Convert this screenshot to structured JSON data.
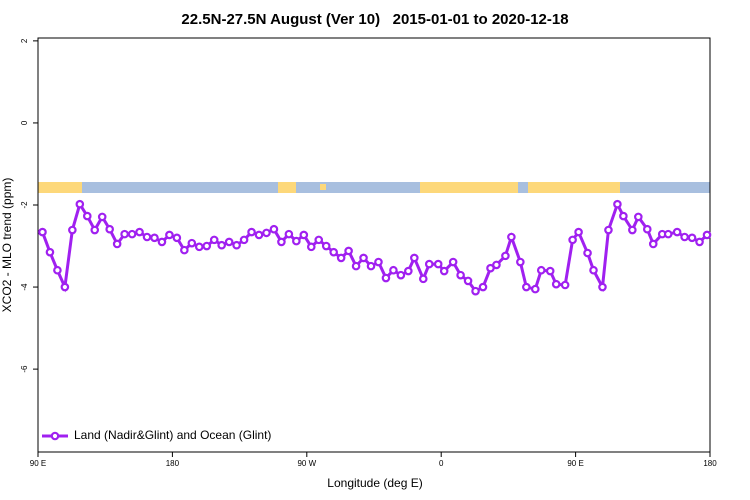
{
  "chart_data": {
    "type": "line",
    "title": "22.5N-27.5N August (Ver 10)   2015-01-01 to 2020-12-18",
    "x_label": "Longitude (deg E)",
    "y_label": "XCO2 - MLO trend (ppm)",
    "xlim": [
      90,
      540
    ],
    "xticks": [
      {
        "value": 90,
        "label": "90 E"
      },
      180,
      {
        "value": 270,
        "label": "90 W"
      },
      {
        "value": 360,
        "label": "0"
      },
      {
        "value": 450,
        "label": "90 E"
      },
      180
    ],
    "ylim": [
      -8.02,
      2.07
    ],
    "yticks": [
      -6,
      -4,
      -2,
      0,
      2
    ],
    "legend_position": "bottom-left",
    "x": [
      93,
      98,
      103,
      108,
      113,
      118,
      123,
      128,
      133,
      138,
      143,
      148,
      153,
      158,
      163,
      168,
      173,
      178,
      183,
      188,
      193,
      198,
      203,
      208,
      213,
      218,
      223,
      228,
      233,
      238,
      243,
      248,
      253,
      258,
      263,
      268,
      273,
      278,
      283,
      288,
      293,
      298,
      303,
      308,
      313,
      318,
      323,
      328,
      333,
      338,
      342,
      348,
      352,
      358,
      362,
      368,
      373,
      378,
      383,
      388,
      393,
      397,
      403,
      407,
      413,
      417,
      423,
      427,
      433,
      437,
      443,
      448,
      452,
      458,
      462,
      468,
      472,
      478,
      482,
      488,
      492,
      498,
      502,
      508,
      512,
      518,
      523,
      528,
      533,
      538
    ],
    "series": [
      {
        "name": "Land (Nadir&Glint) and Ocean (Glint)",
        "color": "#a020f0",
        "values": [
          -2.66,
          -3.15,
          -3.59,
          -4.0,
          -2.61,
          -1.98,
          -2.27,
          -2.61,
          -2.29,
          -2.59,
          -2.95,
          -2.71,
          -2.71,
          -2.66,
          -2.78,
          -2.8,
          -2.9,
          -2.73,
          -2.8,
          -3.1,
          -2.93,
          -3.02,
          -3.0,
          -2.85,
          -2.98,
          -2.9,
          -2.98,
          -2.85,
          -2.66,
          -2.73,
          -2.68,
          -2.59,
          -2.9,
          -2.71,
          -2.88,
          -2.73,
          -3.02,
          -2.85,
          -3.0,
          -3.15,
          -3.29,
          -3.12,
          -3.49,
          -3.29,
          -3.49,
          -3.39,
          -3.78,
          -3.59,
          -3.71,
          -3.61,
          -3.29,
          -3.8,
          -3.44,
          -3.44,
          -3.61,
          -3.39,
          -3.71,
          -3.85,
          -4.1,
          -4.0,
          -3.54,
          -3.46,
          -3.24,
          -2.78,
          -3.39,
          -4.0,
          -4.05,
          -3.59,
          -3.61,
          -3.93,
          -3.95,
          -2.85,
          -2.66,
          -3.17,
          -3.59,
          -4.0,
          -2.61,
          -1.98,
          -2.27,
          -2.61,
          -2.29,
          -2.59,
          -2.95,
          -2.71,
          -2.71,
          -2.66,
          -2.78,
          -2.8,
          -2.9,
          -2.73
        ]
      }
    ]
  }
}
